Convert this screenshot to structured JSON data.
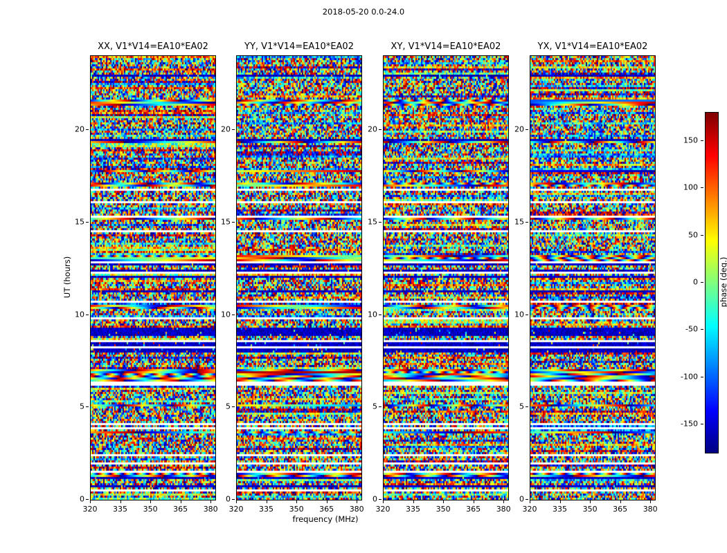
{
  "chart_data": {
    "type": "heatmap",
    "title": "2018-05-20 0.0-24.0",
    "panels": [
      {
        "title": "XX, V1*V14=EA10*EA02",
        "correlation": "XX",
        "baseline": "V1*V14=EA10*EA02"
      },
      {
        "title": "YY, V1*V14=EA10*EA02",
        "correlation": "YY",
        "baseline": "V1*V14=EA10*EA02"
      },
      {
        "title": "XY, V1*V14=EA10*EA02",
        "correlation": "XY",
        "baseline": "V1*V14=EA10*EA02"
      },
      {
        "title": "YX, V1*V14=EA10*EA02",
        "correlation": "YX",
        "baseline": "V1*V14=EA10*EA02"
      }
    ],
    "x": {
      "label": "frequency (MHz)",
      "min": 320,
      "max": 382,
      "ticks": [
        320,
        335,
        350,
        365,
        380
      ]
    },
    "y": {
      "label": "UT (hours)",
      "min": 0,
      "max": 24,
      "ticks": [
        0,
        5,
        10,
        15,
        20
      ]
    },
    "colorbar": {
      "label": "phase (deg.)",
      "min": -180,
      "max": 180,
      "ticks": [
        150,
        100,
        50,
        0,
        -50,
        -100,
        -150
      ],
      "colormap": "jet",
      "colormap_stops": [
        "#000080",
        "#0000ff",
        "#00ffff",
        "#80ff80",
        "#ffff00",
        "#ff0000",
        "#800000"
      ]
    },
    "content": "Interferometric visibility phase (deg.) versus frequency (MHz, x) and UT time (hours, y) for baseline V1*V14=EA10*EA02 in four correlations (XX, YY, XY, YX). Pixels are mostly uniform random phase noise spanning -180..180 deg rendered with the jet colormap; horizontal white rows are flagged time samples; occasional horizontal coherent bands/fringes (smooth rainbow or saturated red/cyan streaks) appear near hours ~1.3, ~6.5-7, ~10.4, ~13, ~17 and ~21.5; dark navy bands appear near hours ~8-9.4."
  }
}
